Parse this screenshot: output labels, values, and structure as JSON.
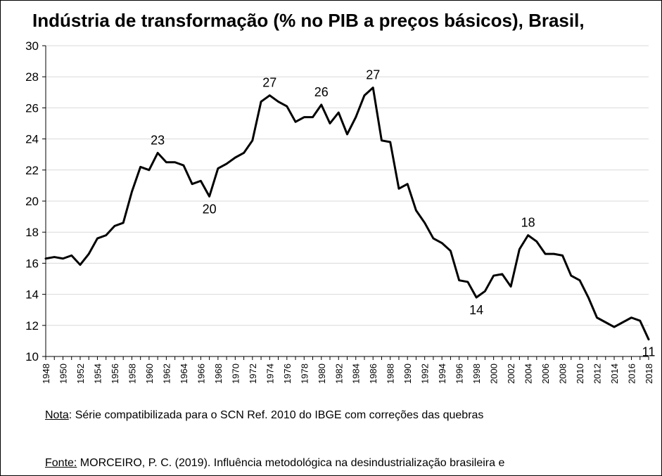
{
  "chart_data": {
    "type": "line",
    "title": "Indústria de transformação (% no PIB a preços básicos), Brasil,",
    "xlabel": "",
    "ylabel": "",
    "ylim": [
      10,
      30
    ],
    "yticks": [
      "10",
      "12",
      "14",
      "16",
      "18",
      "20",
      "22",
      "24",
      "26",
      "28",
      "30"
    ],
    "xlim": [
      1948,
      2018
    ],
    "xticks": [
      "1948",
      "1950",
      "1952",
      "1954",
      "1956",
      "1958",
      "1960",
      "1962",
      "1964",
      "1966",
      "1968",
      "1970",
      "1972",
      "1974",
      "1976",
      "1978",
      "1980",
      "1982",
      "1984",
      "1986",
      "1988",
      "1990",
      "1992",
      "1994",
      "1996",
      "1998",
      "2000",
      "2002",
      "2004",
      "2006",
      "2008",
      "2010",
      "2012",
      "2014",
      "2016",
      "2018"
    ],
    "grid": "horizontal",
    "line_color": "#000000",
    "series": [
      {
        "x": [
          1948,
          1949,
          1950,
          1951,
          1952,
          1953,
          1954,
          1955,
          1956,
          1957,
          1958,
          1959,
          1960,
          1961,
          1962,
          1963,
          1964,
          1965,
          1966,
          1967,
          1968,
          1969,
          1970,
          1971,
          1972,
          1973,
          1974,
          1975,
          1976,
          1977,
          1978,
          1979,
          1980,
          1981,
          1982,
          1983,
          1984,
          1985,
          1986,
          1987,
          1988,
          1989,
          1990,
          1991,
          1992,
          1993,
          1994,
          1995,
          1996,
          1997,
          1998,
          1999,
          2000,
          2001,
          2002,
          2003,
          2004,
          2005,
          2006,
          2007,
          2008,
          2009,
          2010,
          2011,
          2012,
          2013,
          2014,
          2015,
          2016,
          2017,
          2018
        ],
        "values": [
          16.3,
          16.4,
          16.3,
          16.5,
          15.9,
          16.6,
          17.6,
          17.8,
          18.4,
          18.6,
          20.6,
          22.2,
          22.0,
          23.1,
          22.5,
          22.5,
          22.3,
          21.1,
          21.3,
          20.3,
          22.1,
          22.4,
          22.8,
          23.1,
          23.9,
          26.4,
          26.8,
          26.4,
          26.1,
          25.1,
          25.4,
          25.4,
          26.2,
          25.0,
          25.7,
          24.3,
          25.4,
          26.8,
          27.3,
          23.9,
          23.8,
          20.8,
          21.1,
          19.4,
          18.6,
          17.6,
          17.3,
          16.8,
          14.9,
          14.8,
          13.8,
          14.2,
          15.2,
          15.3,
          14.5,
          16.9,
          17.8,
          17.4,
          16.6,
          16.6,
          16.5,
          15.2,
          14.9,
          13.8,
          12.5,
          12.2,
          11.9,
          12.2,
          12.5,
          12.3,
          11.1
        ]
      }
    ],
    "annotations": [
      {
        "year": 1961,
        "value": 23.1,
        "label": "23",
        "pos": "above"
      },
      {
        "year": 1967,
        "value": 20.3,
        "label": "20",
        "pos": "below"
      },
      {
        "year": 1974,
        "value": 26.8,
        "label": "27",
        "pos": "above"
      },
      {
        "year": 1980,
        "value": 26.2,
        "label": "26",
        "pos": "above"
      },
      {
        "year": 1986,
        "value": 27.3,
        "label": "27",
        "pos": "above"
      },
      {
        "year": 1998,
        "value": 13.8,
        "label": "14",
        "pos": "below"
      },
      {
        "year": 2004,
        "value": 17.8,
        "label": "18",
        "pos": "above"
      },
      {
        "year": 2018,
        "value": 11.1,
        "label": "11",
        "pos": "below"
      }
    ]
  },
  "note": {
    "prefix": "Nota",
    "text": ": Série compatibilizada para o SCN Ref. 2010 do IBGE com correções das quebras"
  },
  "source": {
    "prefix": "Fonte:",
    "text": " MORCEIRO, P. C. (2019). Influência metodológica na desindustrialização brasileira e"
  }
}
